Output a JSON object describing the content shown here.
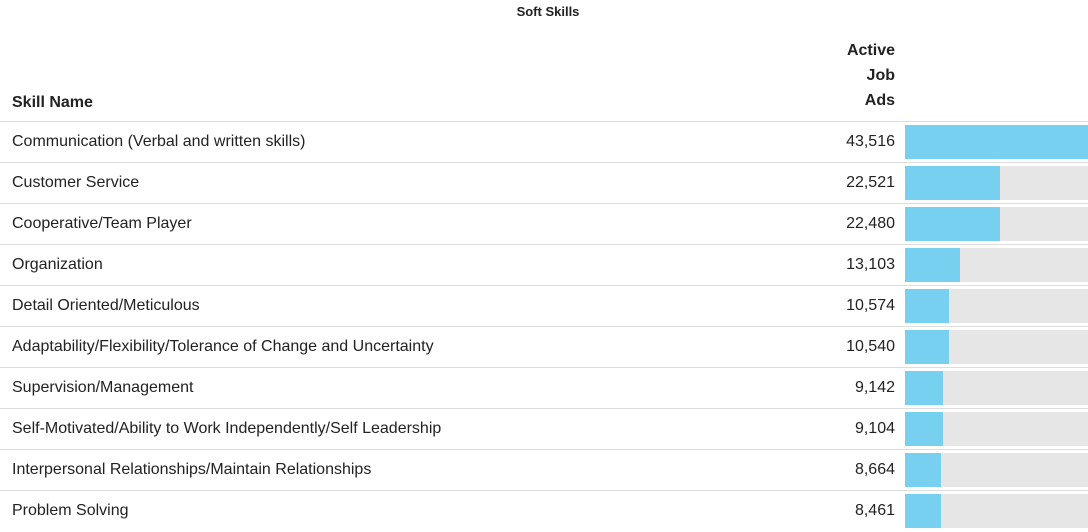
{
  "chart_data": {
    "type": "bar-table",
    "title": "Soft Skills",
    "column_headers": [
      "Skill Name",
      "Active Job Ads"
    ],
    "categories": [
      "Communication (Verbal and written skills)",
      "Customer Service",
      "Cooperative/Team Player",
      "Organization",
      "Detail Oriented/Meticulous",
      "Adaptability/Flexibility/Tolerance of Change and Uncertainty",
      "Supervision/Management",
      "Self-Motivated/Ability to Work Independently/Self Leadership",
      "Interpersonal Relationships/Maintain Relationships",
      "Problem Solving"
    ],
    "values": [
      43516,
      22521,
      22480,
      13103,
      10574,
      10540,
      9142,
      9104,
      8664,
      8461
    ],
    "value_labels": [
      "43,516",
      "22,521",
      "22,480",
      "13,103",
      "10,574",
      "10,540",
      "9,142",
      "9,104",
      "8,664",
      "8,461"
    ],
    "color": "#77d0f0",
    "track_color": "#e6e6e6"
  }
}
